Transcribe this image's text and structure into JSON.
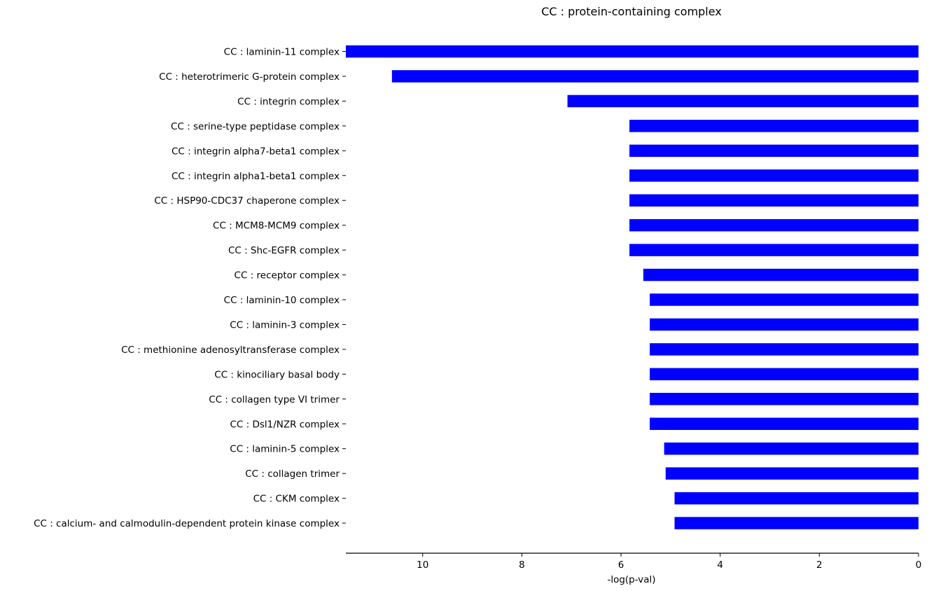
{
  "chart_data": {
    "type": "bar",
    "orientation": "horizontal",
    "title": "CC : protein-containing complex",
    "xlabel": "-log(p-val)",
    "ylabel": "",
    "x_axis_inverted": true,
    "xlim": [
      11.55,
      0
    ],
    "xticks": [
      10,
      8,
      6,
      4,
      2,
      0
    ],
    "bar_color": "#0000ff",
    "grid": false,
    "categories": [
      "CC : laminin-11 complex",
      "CC : heterotrimeric G-protein complex",
      "CC : integrin complex",
      "CC : serine-type peptidase complex",
      "CC : integrin alpha7-beta1 complex",
      "CC : integrin alpha1-beta1 complex",
      "CC : HSP90-CDC37 chaperone complex",
      "CC : MCM8-MCM9 complex",
      "CC : Shc-EGFR complex",
      "CC : receptor complex",
      "CC : laminin-10 complex",
      "CC : laminin-3 complex",
      "CC : methionine adenosyltransferase complex",
      "CC : kinociliary basal body",
      "CC : collagen type VI trimer",
      "CC : Dsl1/NZR complex",
      "CC : laminin-5 complex",
      "CC : collagen trimer",
      "CC : CKM complex",
      "CC : calcium- and calmodulin-dependent protein kinase complex"
    ],
    "values": [
      11.55,
      10.62,
      7.08,
      5.83,
      5.83,
      5.83,
      5.83,
      5.83,
      5.83,
      5.55,
      5.42,
      5.42,
      5.42,
      5.42,
      5.42,
      5.42,
      5.13,
      5.1,
      4.92,
      4.92
    ]
  }
}
